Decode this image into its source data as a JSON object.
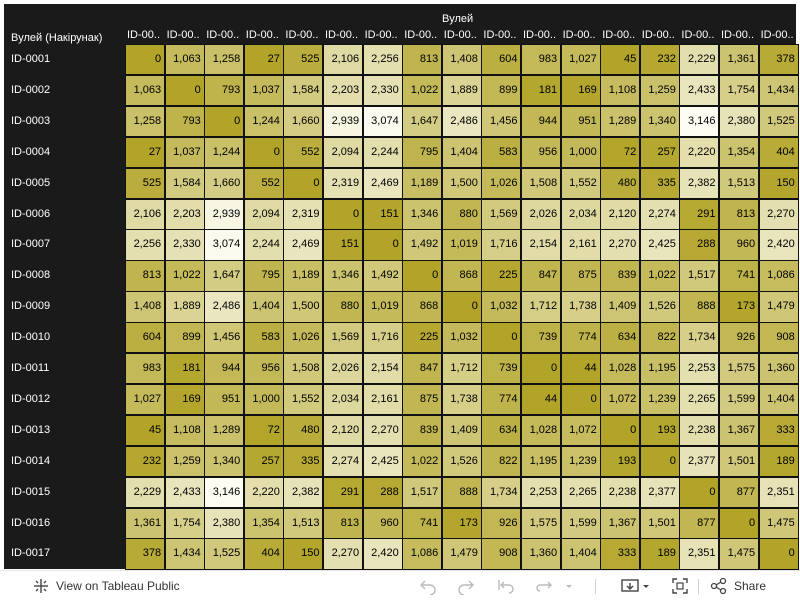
{
  "header": {
    "column_group_label": "Вулей",
    "row_header_label": "Вулей (Накірунак)"
  },
  "footer": {
    "view_label": "View on Tableau Public",
    "share_label": "Share",
    "icons": [
      "tableau-logo-icon",
      "undo-icon",
      "redo-icon",
      "revert-icon",
      "refresh-icon",
      "dropdown-icon",
      "download-icon",
      "fullscreen-icon",
      "share-icon"
    ]
  },
  "chart_data": {
    "type": "heatmap",
    "column_labels": [
      "ID-00..",
      "ID-00..",
      "ID-00..",
      "ID-00..",
      "ID-00..",
      "ID-00..",
      "ID-00..",
      "ID-00..",
      "ID-00..",
      "ID-00..",
      "ID-00..",
      "ID-00..",
      "ID-00..",
      "ID-00..",
      "ID-00..",
      "ID-00..",
      "ID-00.."
    ],
    "row_labels": [
      "ID-0001",
      "ID-0002",
      "ID-0003",
      "ID-0004",
      "ID-0005",
      "ID-0006",
      "ID-0007",
      "ID-0008",
      "ID-0009",
      "ID-0010",
      "ID-0011",
      "ID-0012",
      "ID-0013",
      "ID-0014",
      "ID-0015",
      "ID-0016",
      "ID-0017"
    ],
    "values": [
      [
        0,
        1063,
        1258,
        27,
        525,
        2106,
        2256,
        813,
        1408,
        604,
        983,
        1027,
        45,
        232,
        2229,
        1361,
        378
      ],
      [
        1063,
        0,
        793,
        1037,
        1584,
        2203,
        2330,
        1022,
        1889,
        899,
        181,
        169,
        1108,
        1259,
        2433,
        1754,
        1434
      ],
      [
        1258,
        793,
        0,
        1244,
        1660,
        2939,
        3074,
        1647,
        2486,
        1456,
        944,
        951,
        1289,
        1340,
        3146,
        2380,
        1525
      ],
      [
        27,
        1037,
        1244,
        0,
        552,
        2094,
        2244,
        795,
        1404,
        583,
        956,
        1000,
        72,
        257,
        2220,
        1354,
        404
      ],
      [
        525,
        1584,
        1660,
        552,
        0,
        2319,
        2469,
        1189,
        1500,
        1026,
        1508,
        1552,
        480,
        335,
        2382,
        1513,
        150
      ],
      [
        2106,
        2203,
        2939,
        2094,
        2319,
        0,
        151,
        1346,
        880,
        1569,
        2026,
        2034,
        2120,
        2274,
        291,
        813,
        2270
      ],
      [
        2256,
        2330,
        3074,
        2244,
        2469,
        151,
        0,
        1492,
        1019,
        1716,
        2154,
        2161,
        2270,
        2425,
        288,
        960,
        2420
      ],
      [
        813,
        1022,
        1647,
        795,
        1189,
        1346,
        1492,
        0,
        868,
        225,
        847,
        875,
        839,
        1022,
        1517,
        741,
        1086
      ],
      [
        1408,
        1889,
        2486,
        1404,
        1500,
        880,
        1019,
        868,
        0,
        1032,
        1712,
        1738,
        1409,
        1526,
        888,
        173,
        1479
      ],
      [
        604,
        899,
        1456,
        583,
        1026,
        1569,
        1716,
        225,
        1032,
        0,
        739,
        774,
        634,
        822,
        1734,
        926,
        908
      ],
      [
        983,
        181,
        944,
        956,
        1508,
        2026,
        2154,
        847,
        1712,
        739,
        0,
        44,
        1028,
        1195,
        2253,
        1575,
        1360
      ],
      [
        1027,
        169,
        951,
        1000,
        1552,
        2034,
        2161,
        875,
        1738,
        774,
        44,
        0,
        1072,
        1239,
        2265,
        1599,
        1404
      ],
      [
        45,
        1108,
        1289,
        72,
        480,
        2120,
        2270,
        839,
        1409,
        634,
        1028,
        1072,
        0,
        193,
        2238,
        1367,
        333
      ],
      [
        232,
        1259,
        1340,
        257,
        335,
        2274,
        2425,
        1022,
        1526,
        822,
        1195,
        1239,
        193,
        0,
        2377,
        1501,
        189
      ],
      [
        2229,
        2433,
        3146,
        2220,
        2382,
        291,
        288,
        1517,
        888,
        1734,
        2253,
        2265,
        2238,
        2377,
        0,
        877,
        2351
      ],
      [
        1361,
        1754,
        2380,
        1354,
        1513,
        813,
        960,
        741,
        173,
        926,
        1575,
        1599,
        1367,
        1501,
        877,
        0,
        1475
      ],
      [
        378,
        1434,
        1525,
        404,
        150,
        2270,
        2420,
        1086,
        1479,
        908,
        1360,
        1404,
        333,
        189,
        2351,
        1475,
        0
      ]
    ],
    "color_scale": {
      "low": "#b2a428",
      "high": "#fdfdf4"
    },
    "value_range": [
      0,
      3146
    ],
    "legend": "none"
  }
}
